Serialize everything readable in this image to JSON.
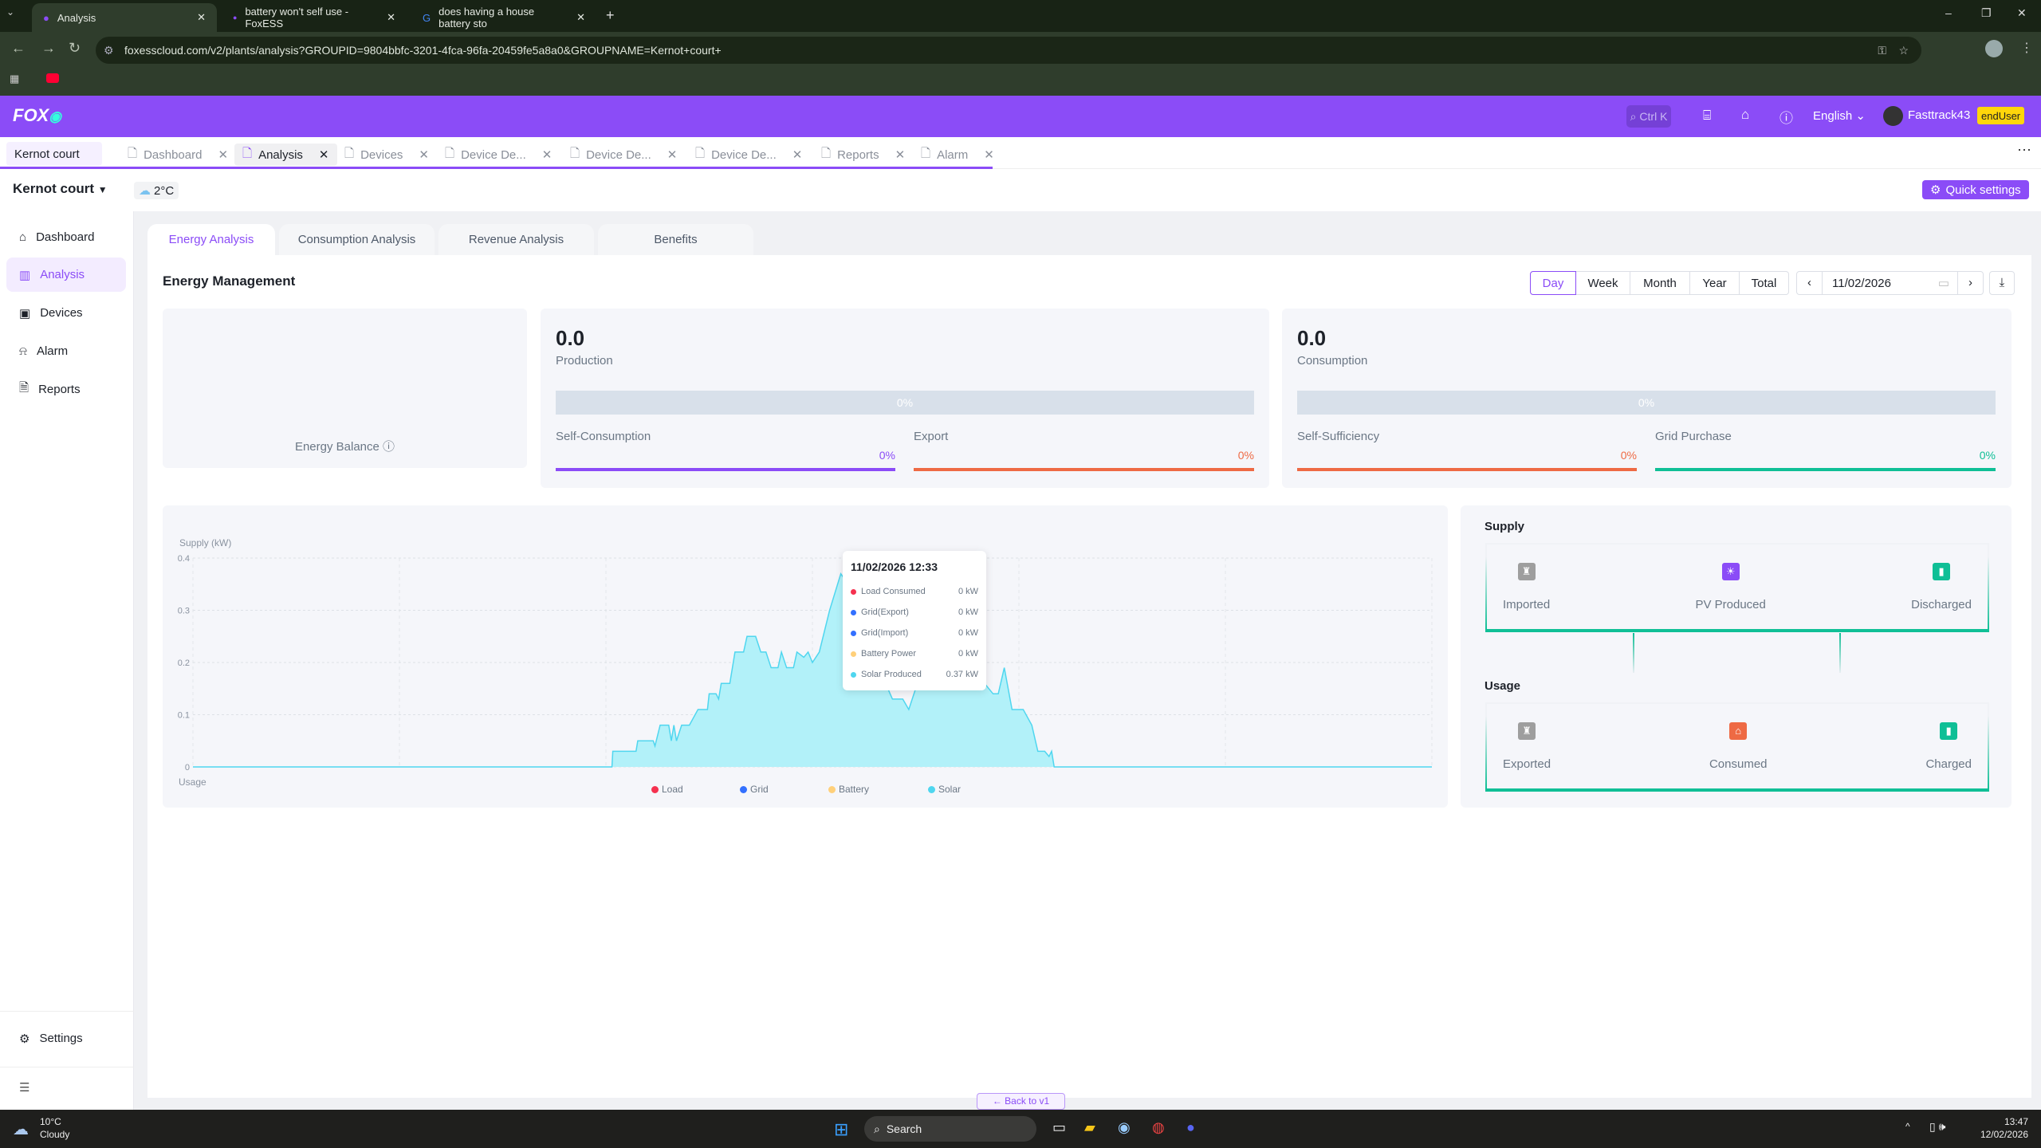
{
  "browser": {
    "tabs": [
      {
        "label": "Analysis",
        "active": true
      },
      {
        "label": "battery won't self use - FoxESS"
      },
      {
        "label": "does having a house battery sto"
      }
    ],
    "url": "foxesscloud.com/v2/plants/analysis?GROUPID=9804bbfc-3201-4fca-96fa-20459fe5a8a0&GROUPNAME=Kernot+court+"
  },
  "header": {
    "logo": "FOX ESS",
    "search_placeholder": "Ctrl K",
    "language": "English",
    "username": "Fasttrack43",
    "role_badge": "endUser",
    "accent": "#8b4cf7"
  },
  "page_tabs": [
    {
      "label": "Kernot court"
    },
    {
      "label": "Dashboard"
    },
    {
      "label": "Analysis",
      "active": true
    },
    {
      "label": "Devices"
    },
    {
      "label": "Device De..."
    },
    {
      "label": "Device De..."
    },
    {
      "label": "Device De..."
    },
    {
      "label": "Reports"
    },
    {
      "label": "Alarm"
    }
  ],
  "plant": {
    "name": "Kernot court",
    "temperature": "2°C",
    "quick_settings": "Quick settings"
  },
  "sidebar": {
    "items": [
      {
        "label": "Dashboard",
        "icon": "home-icon"
      },
      {
        "label": "Analysis",
        "icon": "bar-chart-icon",
        "active": true
      },
      {
        "label": "Devices",
        "icon": "device-icon"
      },
      {
        "label": "Alarm",
        "icon": "alarm-icon"
      },
      {
        "label": "Reports",
        "icon": "report-icon"
      }
    ],
    "settings": "Settings"
  },
  "analysis_tabs": [
    "Energy Analysis",
    "Consumption Analysis",
    "Revenue Analysis",
    "Benefits"
  ],
  "section_title": "Energy Management",
  "periods": [
    "Day",
    "Week",
    "Month",
    "Year",
    "Total"
  ],
  "selected_period": "Day",
  "date": "11/02/2026",
  "energy_balance": "Energy Balance",
  "production": {
    "value": "0.0",
    "label": "Production",
    "bar_pct": "0%",
    "self_consumption": {
      "label": "Self-Consumption",
      "pct": "0%"
    },
    "export": {
      "label": "Export",
      "pct": "0%"
    }
  },
  "consumption": {
    "value": "0.0",
    "label": "Consumption",
    "bar_pct": "0%",
    "self_sufficiency": {
      "label": "Self-Sufficiency",
      "pct": "0%"
    },
    "grid_purchase": {
      "label": "Grid Purchase",
      "pct": "0%"
    }
  },
  "chart_data": {
    "type": "area",
    "ylabel": "Supply (kW)",
    "bottom_label": "Usage",
    "ylim": [
      0,
      0.4
    ],
    "yticks": [
      "0",
      "0.1",
      "0.2",
      "0.3",
      "0.4"
    ],
    "grid": true,
    "legend": [
      {
        "name": "Load",
        "color": "#f5314f"
      },
      {
        "name": "Grid",
        "color": "#3370ff"
      },
      {
        "name": "Battery",
        "color": "#ffd07a"
      },
      {
        "name": "Solar",
        "color": "#4fd6ef"
      }
    ],
    "legend_position": "bottom",
    "series": [
      {
        "name": "Solar",
        "color": "#4fd6ef",
        "points": [
          [
            "00:00",
            0
          ],
          [
            "08:07",
            0
          ],
          [
            "08:08",
            0.03
          ],
          [
            "08:35",
            0.03
          ],
          [
            "08:37",
            0.05
          ],
          [
            "08:55",
            0.05
          ],
          [
            "08:57",
            0.04
          ],
          [
            "09:03",
            0.08
          ],
          [
            "09:13",
            0.08
          ],
          [
            "09:16",
            0.05
          ],
          [
            "09:19",
            0.08
          ],
          [
            "09:22",
            0.05
          ],
          [
            "09:28",
            0.08
          ],
          [
            "09:37",
            0.08
          ],
          [
            "09:47",
            0.11
          ],
          [
            "09:58",
            0.11
          ],
          [
            "10:00",
            0.14
          ],
          [
            "10:08",
            0.14
          ],
          [
            "10:11",
            0.13
          ],
          [
            "10:14",
            0.16
          ],
          [
            "10:24",
            0.16
          ],
          [
            "10:30",
            0.22
          ],
          [
            "10:40",
            0.22
          ],
          [
            "10:44",
            0.25
          ],
          [
            "10:54",
            0.25
          ],
          [
            "11:00",
            0.22
          ],
          [
            "11:06",
            0.22
          ],
          [
            "11:12",
            0.19
          ],
          [
            "11:20",
            0.19
          ],
          [
            "11:24",
            0.22
          ],
          [
            "11:30",
            0.19
          ],
          [
            "11:38",
            0.19
          ],
          [
            "11:42",
            0.22
          ],
          [
            "11:50",
            0.21
          ],
          [
            "11:55",
            0.22
          ],
          [
            "12:00",
            0.2
          ],
          [
            "12:08",
            0.22
          ],
          [
            "12:20",
            0.3
          ],
          [
            "12:33",
            0.37
          ],
          [
            "12:50",
            0.33
          ],
          [
            "13:10",
            0.25
          ],
          [
            "13:25",
            0.16
          ],
          [
            "13:33",
            0.13
          ],
          [
            "13:45",
            0.13
          ],
          [
            "13:52",
            0.11
          ],
          [
            "14:00",
            0.15
          ],
          [
            "14:30",
            0.2
          ],
          [
            "15:00",
            0.18
          ],
          [
            "15:20",
            0.16
          ],
          [
            "15:30",
            0.14
          ],
          [
            "15:36",
            0.14
          ],
          [
            "15:43",
            0.19
          ],
          [
            "15:52",
            0.11
          ],
          [
            "16:05",
            0.11
          ],
          [
            "16:15",
            0.08
          ],
          [
            "16:22",
            0.03
          ],
          [
            "16:30",
            0.03
          ],
          [
            "16:35",
            0.02
          ],
          [
            "16:38",
            0.03
          ],
          [
            "16:41",
            0
          ],
          [
            "24:00",
            0
          ]
        ]
      }
    ],
    "tooltip": {
      "title": "11/02/2026 12:33",
      "rows": [
        {
          "label": "Load Consumed",
          "value": "0 kW",
          "color": "#f5314f"
        },
        {
          "label": "Grid(Export)",
          "value": "0 kW",
          "color": "#3370ff"
        },
        {
          "label": "Grid(Import)",
          "value": "0 kW",
          "color": "#3370ff"
        },
        {
          "label": "Battery Power",
          "value": "0 kW",
          "color": "#ffd07a"
        },
        {
          "label": "Solar Produced",
          "value": "0.37 kW",
          "color": "#4fd6ef"
        }
      ]
    }
  },
  "flow": {
    "supply_title": "Supply",
    "usage_title": "Usage",
    "supply": [
      {
        "label": "Imported",
        "color": "#9e9e9e"
      },
      {
        "label": "PV Produced",
        "color": "#8b4cf7"
      },
      {
        "label": "Discharged",
        "color": "#0fbf96"
      }
    ],
    "usage": [
      {
        "label": "Exported",
        "color": "#9e9e9e"
      },
      {
        "label": "Consumed",
        "color": "#ee6a44"
      },
      {
        "label": "Charged",
        "color": "#0fbf96"
      }
    ]
  },
  "back_button": "Back to v1",
  "taskbar": {
    "weather_temp": "10°C",
    "weather_desc": "Cloudy",
    "search": "Search",
    "time": "13:47",
    "date": "12/02/2026"
  }
}
